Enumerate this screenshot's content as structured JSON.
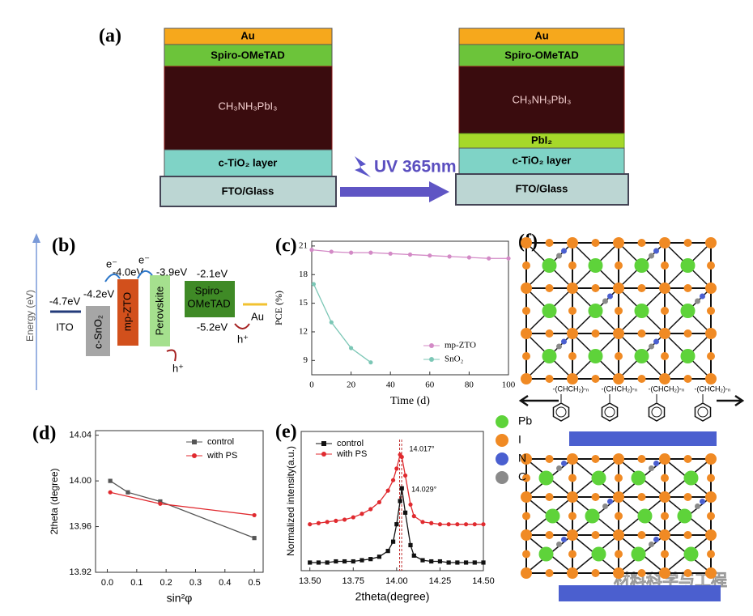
{
  "panel_a": {
    "label": "(a)",
    "before": {
      "au": "Au",
      "spiro": "Spiro-OMeTAD",
      "perovskite": "CH₃NH₃PbI₃",
      "tio2": "c-TiO₂ layer",
      "fto": "FTO/Glass"
    },
    "after": {
      "au": "Au",
      "spiro": "Spiro-OMeTAD",
      "perovskite": "CH₃NH₃PbI₃",
      "pbi2": "PbI₂",
      "tio2": "c-TiO₂ layer",
      "fto": "FTO/Glass"
    },
    "arrow_label": "UV 365nm"
  },
  "panel_b": {
    "label": "(b)",
    "axis_label": "Energy (eV)",
    "ito": {
      "level": "-4.7eV",
      "name": "ITO"
    },
    "sno2": {
      "level": "-4.2eV",
      "name": "c-SnO₂"
    },
    "zto": {
      "level": "-4.0eV",
      "name": "mp-ZTO"
    },
    "perovskite": {
      "level": "-3.9eV",
      "name": "Perovskite"
    },
    "spiro": {
      "lumo": "-2.1eV",
      "homo": "-5.2eV",
      "name": [
        "Spiro-",
        "OMeTAD"
      ]
    },
    "au": {
      "name": "Au"
    },
    "electron": "e⁻",
    "hole": "h⁺"
  },
  "chart_data": [
    {
      "type": "line",
      "label": "(c)",
      "x_label": "Time (d)",
      "y_label": "PCE (%)",
      "xlim": [
        0,
        100
      ],
      "ylim": [
        7.5,
        21.5
      ],
      "xticks": [
        0,
        20,
        40,
        60,
        80,
        100
      ],
      "yticks": [
        9,
        12,
        15,
        18,
        21
      ],
      "legend": "lower right",
      "series": [
        {
          "name": "mp-ZTO",
          "color": "#d38ac6",
          "marker": "circle",
          "x": [
            0,
            10,
            20,
            30,
            40,
            50,
            60,
            70,
            80,
            90,
            100
          ],
          "values": [
            20.6,
            20.4,
            20.3,
            20.3,
            20.2,
            20.1,
            20.0,
            19.9,
            19.8,
            19.7,
            19.7
          ]
        },
        {
          "name": "SnO₂",
          "color": "#7cc7b6",
          "marker": "circle",
          "x": [
            1,
            10,
            20,
            30
          ],
          "values": [
            17.0,
            13.0,
            10.3,
            8.8
          ]
        }
      ]
    },
    {
      "type": "line",
      "label": "(d)",
      "x_label": "sin²φ",
      "y_label": "2theta (degree)",
      "xlim": [
        -0.04,
        0.53
      ],
      "ylim": [
        13.92,
        14.044
      ],
      "xticks": [
        {
          "value": 0,
          "label": "0.0"
        },
        0.1,
        0.2,
        0.3,
        0.4,
        0.5
      ],
      "yticks": [
        13.92,
        13.96,
        {
          "value": 14,
          "label": "14.00"
        },
        14.04
      ],
      "legend": "upper right",
      "series": [
        {
          "name": "control",
          "color": "#555555",
          "marker": "square",
          "x": [
            0.01,
            0.07,
            0.18,
            0.5
          ],
          "values": [
            14.0,
            13.99,
            13.982,
            13.95
          ]
        },
        {
          "name": "with PS",
          "color": "#e02a2f",
          "marker": "circle",
          "x": [
            0.01,
            0.18,
            0.5
          ],
          "values": [
            13.99,
            13.98,
            13.97
          ]
        }
      ]
    },
    {
      "type": "line",
      "label": "(e)",
      "x_label": "2theta(degree)",
      "y_label": "Normalized intensity(a.u.)",
      "xlim": [
        13.45,
        14.5
      ],
      "ylim": [
        0,
        1.2
      ],
      "xticks": [
        {
          "value": 13.5,
          "label": "13.50"
        },
        13.75,
        {
          "value": 14,
          "label": "14.00"
        },
        14.25,
        {
          "value": 14.5,
          "label": "14.50"
        }
      ],
      "legend": "upper left",
      "annotations": [
        {
          "text": "14.017°",
          "x": 14.017
        },
        {
          "text": "14.029°",
          "x": 14.029
        }
      ],
      "series": [
        {
          "name": "control",
          "color": "#111111",
          "marker": "square",
          "x": [
            13.5,
            13.55,
            13.6,
            13.65,
            13.7,
            13.75,
            13.8,
            13.85,
            13.9,
            13.95,
            13.98,
            14.0,
            14.02,
            14.03,
            14.05,
            14.08,
            14.1,
            14.15,
            14.2,
            14.25,
            14.3,
            14.35,
            14.4,
            14.45,
            14.5
          ],
          "values": [
            0.07,
            0.07,
            0.07,
            0.08,
            0.08,
            0.08,
            0.09,
            0.1,
            0.12,
            0.17,
            0.25,
            0.4,
            0.6,
            0.71,
            0.5,
            0.22,
            0.13,
            0.09,
            0.08,
            0.08,
            0.07,
            0.07,
            0.07,
            0.07,
            0.07
          ]
        },
        {
          "name": "with PS",
          "color": "#e02a2f",
          "marker": "circle",
          "x": [
            13.5,
            13.55,
            13.6,
            13.65,
            13.7,
            13.75,
            13.8,
            13.85,
            13.9,
            13.95,
            13.98,
            14.0,
            14.02,
            14.03,
            14.05,
            14.08,
            14.1,
            14.15,
            14.2,
            14.25,
            14.3,
            14.35,
            14.4,
            14.45,
            14.5
          ],
          "values": [
            0.4,
            0.41,
            0.42,
            0.43,
            0.44,
            0.46,
            0.49,
            0.53,
            0.59,
            0.69,
            0.78,
            0.88,
            1.0,
            0.98,
            0.82,
            0.57,
            0.47,
            0.42,
            0.41,
            0.4,
            0.4,
            0.4,
            0.4,
            0.4,
            0.4
          ]
        }
      ]
    }
  ],
  "panel_f": {
    "label": "(f)",
    "repeat_unit": "-(CHCH₂)-ₙ",
    "legend": [
      {
        "name": "Pb",
        "color": "#5ed33a"
      },
      {
        "name": "I",
        "color": "#f08a24"
      },
      {
        "name": "N",
        "color": "#4a5fd0"
      },
      {
        "name": "C",
        "color": "#8a8a8a"
      }
    ]
  },
  "watermark": "材料科学与工程"
}
